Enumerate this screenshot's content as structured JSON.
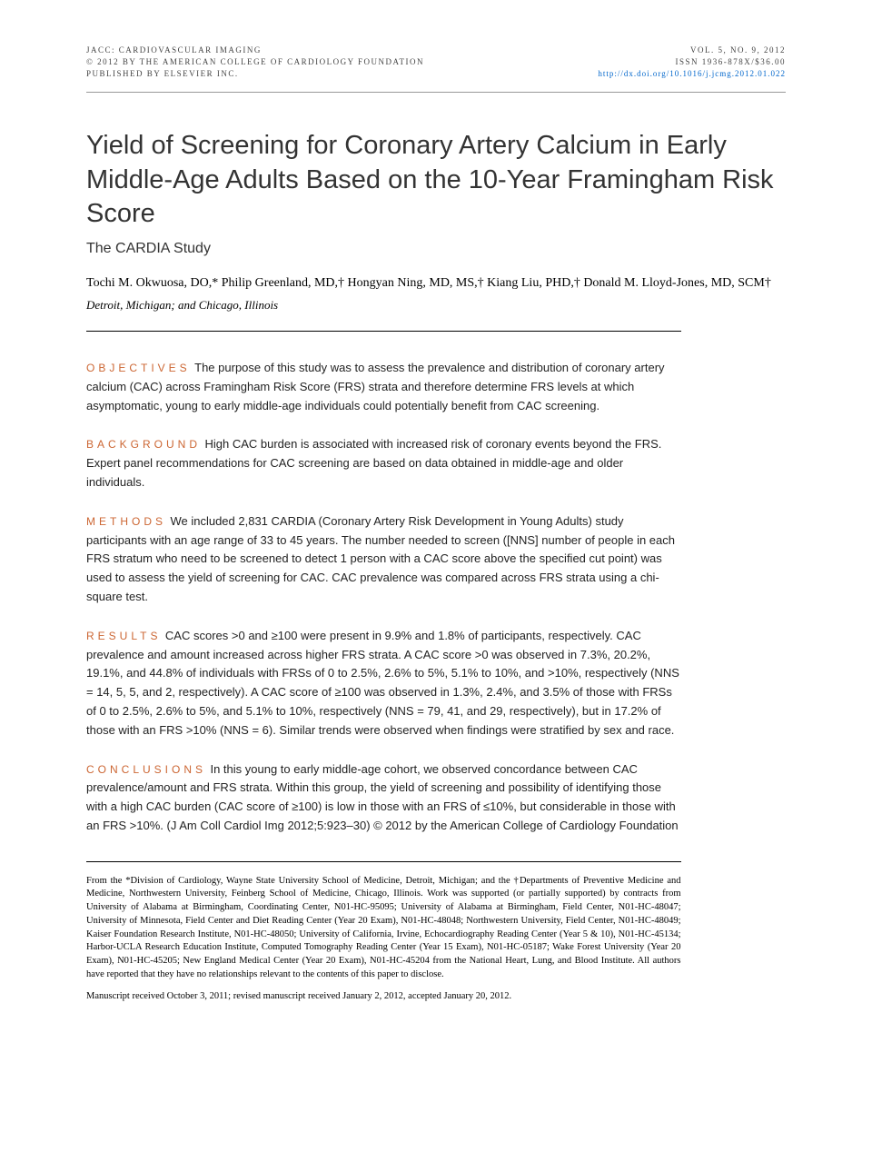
{
  "header": {
    "journal": "JACC: CARDIOVASCULAR IMAGING",
    "copyright": "© 2012 BY THE AMERICAN COLLEGE OF CARDIOLOGY FOUNDATION",
    "publisher": "PUBLISHED BY ELSEVIER INC.",
    "volume": "VOL. 5, NO. 9, 2012",
    "issn": "ISSN 1936-878X/$36.00",
    "doi": "http://dx.doi.org/10.1016/j.jcmg.2012.01.022"
  },
  "title": "Yield of Screening for Coronary Artery Calcium in Early Middle-Age Adults Based on the 10-Year Framingham Risk Score",
  "subtitle": "The CARDIA Study",
  "authors": "Tochi M. Okwuosa, DO,* Philip Greenland, MD,† Hongyan Ning, MD, MS,† Kiang Liu, PHD,† Donald M. Lloyd-Jones, MD, SCM†",
  "affiliation": "Detroit, Michigan; and Chicago, Illinois",
  "abstract": {
    "objectives": {
      "label": "OBJECTIVES",
      "text": " The purpose of this study was to assess the prevalence and distribution of coronary artery calcium (CAC) across Framingham Risk Score (FRS) strata and therefore determine FRS levels at which asymptomatic, young to early middle-age individuals could potentially benefit from CAC screening."
    },
    "background": {
      "label": "BACKGROUND",
      "text": " High CAC burden is associated with increased risk of coronary events beyond the FRS. Expert panel recommendations for CAC screening are based on data obtained in middle-age and older individuals."
    },
    "methods": {
      "label": "METHODS",
      "text": " We included 2,831 CARDIA (Coronary Artery Risk Development in Young Adults) study participants with an age range of 33 to 45 years. The number needed to screen ([NNS] number of people in each FRS stratum who need to be screened to detect 1 person with a CAC score above the specified cut point) was used to assess the yield of screening for CAC. CAC prevalence was compared across FRS strata using a chi-square test."
    },
    "results": {
      "label": "RESULTS",
      "text": " CAC scores >0 and ≥100 were present in 9.9% and 1.8% of participants, respectively. CAC prevalence and amount increased across higher FRS strata. A CAC score >0 was observed in 7.3%, 20.2%, 19.1%, and 44.8% of individuals with FRSs of 0 to 2.5%, 2.6% to 5%, 5.1% to 10%, and >10%, respectively (NNS = 14, 5, 5, and 2, respectively). A CAC score of ≥100 was observed in 1.3%, 2.4%, and 3.5% of those with FRSs of 0 to 2.5%, 2.6% to 5%, and 5.1% to 10%, respectively (NNS = 79, 41, and 29, respectively), but in 17.2% of those with an FRS >10% (NNS = 6). Similar trends were observed when findings were stratified by sex and race."
    },
    "conclusions": {
      "label": "CONCLUSIONS",
      "text": " In this young to early middle-age cohort, we observed concordance between CAC prevalence/amount and FRS strata. Within this group, the yield of screening and possibility of identifying those with a high CAC burden (CAC score of ≥100) is low in those with an FRS of ≤10%, but considerable in those with an FRS >10%.  (J Am Coll Cardiol Img 2012;5:923–30) © 2012 by the American College of Cardiology Foundation"
    }
  },
  "footnote": "From the *Division of Cardiology, Wayne State University School of Medicine, Detroit, Michigan; and the †Departments of Preventive Medicine and Medicine, Northwestern University, Feinberg School of Medicine, Chicago, Illinois. Work was supported (or partially supported) by contracts from University of Alabama at Birmingham, Coordinating Center, N01-HC-95095; University of Alabama at Birmingham, Field Center, N01-HC-48047; University of Minnesota, Field Center and Diet Reading Center (Year 20 Exam), N01-HC-48048; Northwestern University, Field Center, N01-HC-48049; Kaiser Foundation Research Institute, N01-HC-48050; University of California, Irvine, Echocardiography Reading Center (Year 5 & 10), N01-HC-45134; Harbor-UCLA Research Education Institute, Computed Tomography Reading Center (Year 15 Exam), N01-HC-05187; Wake Forest University (Year 20 Exam), N01-HC-45205; New England Medical Center (Year 20 Exam), N01-HC-45204 from the National Heart, Lung, and Blood Institute. All authors have reported that they have no relationships relevant to the contents of this paper to disclose.",
  "manuscript": "Manuscript received October 3, 2011; revised manuscript received January 2, 2012, accepted January 20, 2012.",
  "colors": {
    "label_color": "#cc6633",
    "link_color": "#0066cc",
    "background": "#ffffff",
    "text": "#000000"
  }
}
